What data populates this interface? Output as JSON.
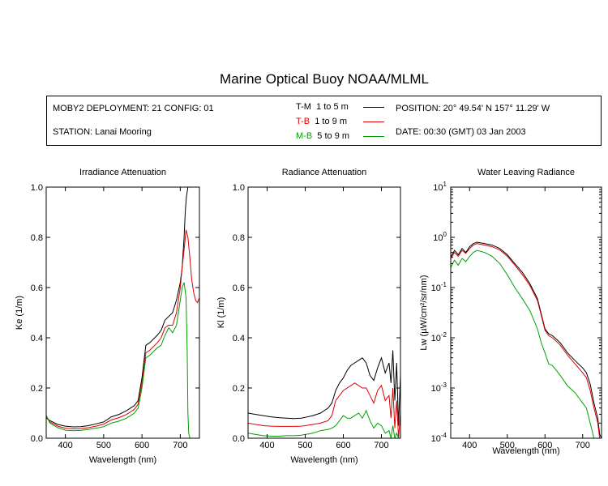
{
  "title": "Marine Optical Buoy NOAA/MLML",
  "info": {
    "deployment": "MOBY2 DEPLOYMENT: 21 CONFIG: 01",
    "station": "STATION: Lanai Mooring",
    "position": "POSITION: 20° 49.54' N   157° 11.29' W",
    "date": "DATE: 00:30 (GMT) 03 Jan 2003"
  },
  "legend": [
    {
      "pair": "T-M",
      "range": "1 to 5  m",
      "color": "#000000"
    },
    {
      "pair": "T-B",
      "range": "1 to 9  m",
      "color": "#dd0000"
    },
    {
      "pair": "M-B",
      "range": "5 to 9  m",
      "color": "#00a000"
    }
  ],
  "chart_data": [
    {
      "type": "line",
      "title": "Irradiance Attenuation",
      "xlabel": "Wavelength (nm)",
      "ylabel": "Ke  (1/m)",
      "xlim": [
        350,
        750
      ],
      "ylim": [
        0,
        1.0
      ],
      "xticks": [
        400,
        500,
        600,
        700
      ],
      "yticks": [
        0.0,
        0.2,
        0.4,
        0.6,
        0.8,
        1.0
      ],
      "ytick_labels": [
        "0.0",
        "0.2",
        "0.4",
        "0.6",
        "0.8",
        "1.0"
      ],
      "series": [
        {
          "name": "T-M",
          "color": "#000000",
          "x": [
            350,
            360,
            380,
            400,
            420,
            440,
            460,
            480,
            500,
            520,
            540,
            560,
            580,
            590,
            600,
            610,
            620,
            640,
            650,
            660,
            680,
            690,
            700,
            705,
            710,
            713,
            716,
            720
          ],
          "y": [
            0.08,
            0.07,
            0.055,
            0.048,
            0.045,
            0.046,
            0.05,
            0.057,
            0.065,
            0.085,
            0.095,
            0.11,
            0.13,
            0.15,
            0.24,
            0.37,
            0.38,
            0.41,
            0.43,
            0.47,
            0.5,
            0.55,
            0.62,
            0.68,
            0.8,
            0.9,
            0.96,
            1.0
          ]
        },
        {
          "name": "T-B",
          "color": "#dd0000",
          "x": [
            350,
            360,
            380,
            400,
            420,
            440,
            460,
            480,
            500,
            520,
            540,
            560,
            580,
            590,
            600,
            610,
            620,
            640,
            650,
            660,
            670,
            680,
            690,
            700,
            705,
            710,
            715,
            720,
            725,
            730,
            735,
            740,
            745,
            750
          ],
          "y": [
            0.09,
            0.065,
            0.048,
            0.04,
            0.037,
            0.038,
            0.042,
            0.048,
            0.056,
            0.073,
            0.082,
            0.095,
            0.115,
            0.135,
            0.22,
            0.34,
            0.35,
            0.38,
            0.4,
            0.44,
            0.45,
            0.45,
            0.5,
            0.6,
            0.68,
            0.75,
            0.83,
            0.8,
            0.72,
            0.63,
            0.58,
            0.55,
            0.54,
            0.56
          ]
        },
        {
          "name": "M-B",
          "color": "#00a000",
          "x": [
            350,
            360,
            380,
            400,
            420,
            440,
            460,
            480,
            500,
            520,
            540,
            560,
            580,
            590,
            600,
            610,
            620,
            640,
            650,
            660,
            670,
            680,
            690,
            700,
            705,
            710,
            715,
            718,
            720,
            722,
            725
          ],
          "y": [
            0.09,
            0.06,
            0.042,
            0.032,
            0.03,
            0.031,
            0.035,
            0.04,
            0.046,
            0.06,
            0.068,
            0.08,
            0.1,
            0.12,
            0.2,
            0.32,
            0.33,
            0.36,
            0.37,
            0.41,
            0.44,
            0.42,
            0.45,
            0.55,
            0.6,
            0.62,
            0.56,
            0.35,
            0.1,
            0.02,
            0.0
          ]
        }
      ]
    },
    {
      "type": "line",
      "title": "Radiance Attenuation",
      "xlabel": "Wavelength (nm)",
      "ylabel": "Kl  (1/m)",
      "xlim": [
        350,
        750
      ],
      "ylim": [
        0,
        1.0
      ],
      "xticks": [
        400,
        500,
        600,
        700
      ],
      "yticks": [
        0.0,
        0.2,
        0.4,
        0.6,
        0.8,
        1.0
      ],
      "ytick_labels": [
        "0.0",
        "0.2",
        "0.4",
        "0.6",
        "0.8",
        "1.0"
      ],
      "series": [
        {
          "name": "T-M",
          "color": "#000000",
          "x": [
            350,
            370,
            390,
            410,
            430,
            450,
            470,
            490,
            500,
            520,
            540,
            560,
            570,
            580,
            590,
            600,
            610,
            620,
            630,
            640,
            650,
            660,
            670,
            680,
            690,
            700,
            710,
            720,
            725,
            730,
            735,
            740,
            745,
            750
          ],
          "y": [
            0.1,
            0.095,
            0.09,
            0.085,
            0.082,
            0.08,
            0.078,
            0.08,
            0.083,
            0.09,
            0.1,
            0.12,
            0.14,
            0.19,
            0.22,
            0.24,
            0.27,
            0.29,
            0.3,
            0.31,
            0.32,
            0.3,
            0.25,
            0.23,
            0.28,
            0.32,
            0.26,
            0.3,
            0.22,
            0.35,
            0.15,
            0.3,
            0.05,
            0.25
          ]
        },
        {
          "name": "T-B",
          "color": "#dd0000",
          "x": [
            350,
            370,
            390,
            410,
            430,
            450,
            470,
            490,
            500,
            520,
            540,
            560,
            570,
            580,
            590,
            600,
            610,
            620,
            630,
            640,
            650,
            660,
            670,
            680,
            690,
            700,
            710,
            720,
            725,
            730,
            735,
            740,
            745,
            750
          ],
          "y": [
            0.06,
            0.055,
            0.05,
            0.048,
            0.047,
            0.047,
            0.047,
            0.048,
            0.05,
            0.055,
            0.06,
            0.07,
            0.09,
            0.15,
            0.17,
            0.19,
            0.2,
            0.21,
            0.22,
            0.21,
            0.2,
            0.2,
            0.17,
            0.14,
            0.19,
            0.21,
            0.15,
            0.17,
            0.08,
            0.2,
            0.04,
            0.15,
            0.0,
            0.1
          ]
        },
        {
          "name": "M-B",
          "color": "#00a000",
          "x": [
            350,
            370,
            390,
            410,
            430,
            450,
            470,
            490,
            500,
            520,
            540,
            560,
            570,
            580,
            590,
            600,
            610,
            620,
            630,
            640,
            650,
            660,
            670,
            680,
            690,
            700,
            710,
            720,
            725,
            730,
            735,
            740,
            745,
            750
          ],
          "y": [
            0.02,
            0.015,
            0.01,
            0.008,
            0.008,
            0.01,
            0.01,
            0.012,
            0.015,
            0.02,
            0.03,
            0.035,
            0.04,
            0.05,
            0.07,
            0.09,
            0.08,
            0.08,
            0.09,
            0.1,
            0.08,
            0.11,
            0.07,
            0.04,
            0.06,
            0.05,
            0.02,
            0.03,
            0.0,
            0.05,
            0.0,
            0.02,
            0.0,
            0.0
          ]
        }
      ]
    },
    {
      "type": "line",
      "title": "Water Leaving Radiance",
      "xlabel": "Wavelength (nm)",
      "ylabel": "Lw  (µW/cm²/sr/nm)",
      "xlim": [
        350,
        750
      ],
      "ylim": [
        0.0001,
        10
      ],
      "yscale": "log",
      "xticks": [
        400,
        500,
        600,
        700
      ],
      "yticks": [
        0.0001,
        0.001,
        0.01,
        0.1,
        1,
        10
      ],
      "ytick_bases": [
        "10",
        "10",
        "10",
        "10",
        "10",
        "10"
      ],
      "ytick_exps": [
        "-4",
        "-3",
        "-2",
        "-1",
        "0",
        "1"
      ],
      "series": [
        {
          "name": "T-M",
          "color": "#000000",
          "x": [
            350,
            360,
            370,
            380,
            390,
            400,
            410,
            420,
            440,
            460,
            480,
            500,
            520,
            540,
            560,
            580,
            590,
            600,
            610,
            620,
            640,
            660,
            680,
            700,
            710,
            720,
            730,
            740,
            745,
            750
          ],
          "y": [
            0.4,
            0.55,
            0.45,
            0.6,
            0.5,
            0.65,
            0.75,
            0.8,
            0.75,
            0.7,
            0.6,
            0.45,
            0.3,
            0.2,
            0.12,
            0.06,
            0.03,
            0.015,
            0.012,
            0.011,
            0.008,
            0.005,
            0.0035,
            0.0025,
            0.002,
            0.0012,
            0.0005,
            0.00025,
            0.00012,
            0.0001
          ]
        },
        {
          "name": "T-B",
          "color": "#dd0000",
          "x": [
            350,
            360,
            370,
            380,
            390,
            400,
            410,
            420,
            440,
            460,
            480,
            500,
            520,
            540,
            560,
            580,
            590,
            600,
            610,
            620,
            640,
            660,
            680,
            700,
            710,
            720,
            730,
            740,
            745,
            750
          ],
          "y": [
            0.38,
            0.5,
            0.42,
            0.55,
            0.48,
            0.6,
            0.7,
            0.75,
            0.7,
            0.65,
            0.56,
            0.42,
            0.28,
            0.18,
            0.11,
            0.055,
            0.028,
            0.014,
            0.011,
            0.01,
            0.0072,
            0.0045,
            0.003,
            0.002,
            0.0016,
            0.0009,
            0.0004,
            0.0002,
            0.0001,
            0.0001
          ]
        },
        {
          "name": "M-B",
          "color": "#00a000",
          "x": [
            350,
            360,
            370,
            380,
            390,
            400,
            410,
            420,
            440,
            460,
            480,
            500,
            520,
            540,
            560,
            580,
            590,
            600,
            610,
            620,
            640,
            660,
            680,
            700,
            710,
            720,
            730,
            740
          ],
          "y": [
            0.25,
            0.35,
            0.28,
            0.38,
            0.33,
            0.42,
            0.5,
            0.55,
            0.5,
            0.42,
            0.3,
            0.18,
            0.1,
            0.06,
            0.035,
            0.015,
            0.008,
            0.005,
            0.003,
            0.0028,
            0.0018,
            0.0011,
            0.0008,
            0.0005,
            0.0004,
            0.0002,
            0.0001,
            0.0001
          ]
        }
      ]
    }
  ]
}
